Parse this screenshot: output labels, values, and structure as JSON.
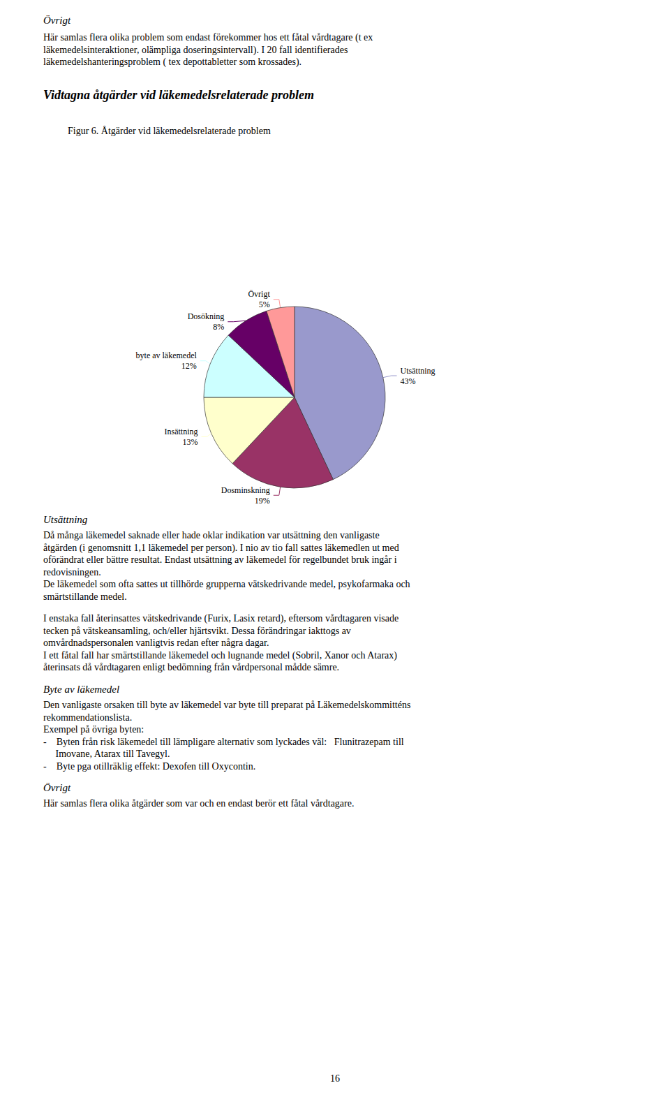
{
  "chart_data": {
    "type": "pie",
    "title": "Figur 6. Åtgärder vid läkemedelsrelaterade problem",
    "categories": [
      "Utsättning",
      "Dosminskning",
      "Insättning",
      "byte av läkemedel",
      "Dosökning",
      "Övrigt"
    ],
    "values": [
      43,
      19,
      13,
      12,
      8,
      5
    ],
    "value_labels": [
      "43%",
      "19%",
      "13%",
      "12%",
      "8%",
      "5%"
    ],
    "colors": [
      "#9999CC",
      "#993366",
      "#FFFFCC",
      "#CCFFFF",
      "#660066",
      "#FF9999"
    ],
    "data_labels": true,
    "legend": false,
    "annotations": [
      "Övrigt",
      "Här samlas flera olika problem som endast förekommer hos ett fåtal vårdtagare (t ex\nläkemedelsinteraktioner, olämpliga doseringsintervall). I 20 fall identifierades\nläkemedelshanteringsproblem ( tex depottabletter som krossades).",
      "Vidtagna åtgärder vid läkemedelsrelaterade problem",
      "Utsättning",
      "Då många läkemedel saknade eller hade oklar indikation var utsättning den vanligaste\nåtgärden (i genomsnitt 1,1 läkemedel per person). I nio av tio fall sattes läkemedlen ut med\noförändrat eller bättre resultat. Endast utsättning av läkemedel för regelbundet bruk ingår i\nredovisningen.\nDe läkemedel som ofta sattes ut tillhörde grupperna vätskedrivande medel, psykofarmaka och\nsmärtstillande medel.",
      "I enstaka fall återinsattes vätskedrivande (Furix, Lasix retard), eftersom vårdtagaren visade\ntecken på vätskeansamling, och/eller hjärtsvikt. Dessa förändringar iakttogs av\nomvårdnadspersonalen vanligtvis redan efter några dagar.\nI ett fåtal fall har smärtstillande läkemedel och lugnande medel (Sobril, Xanor och Atarax)\nåterinsats då vårdtagaren enligt bedömning från vårdpersonal mådde sämre.",
      "Byte av läkemedel",
      "Den vanligaste orsaken till byte av läkemedel var byte till preparat på Läkemedelskommitténs\nrekommendationslista.\nExempel på övriga byten:\n-    Byten från risk läkemedel till lämpligare alternativ som lyckades väl:   Flunitrazepam till\n     Imovane, Atarax till Tavegyl.\n-    Byte pga otillräklig effekt: Dexofen till Oxycontin.",
      "Övrigt",
      "Här samlas flera olika åtgärder som var och en endast berör ett fåtal vårdtagare.",
      "16"
    ]
  }
}
